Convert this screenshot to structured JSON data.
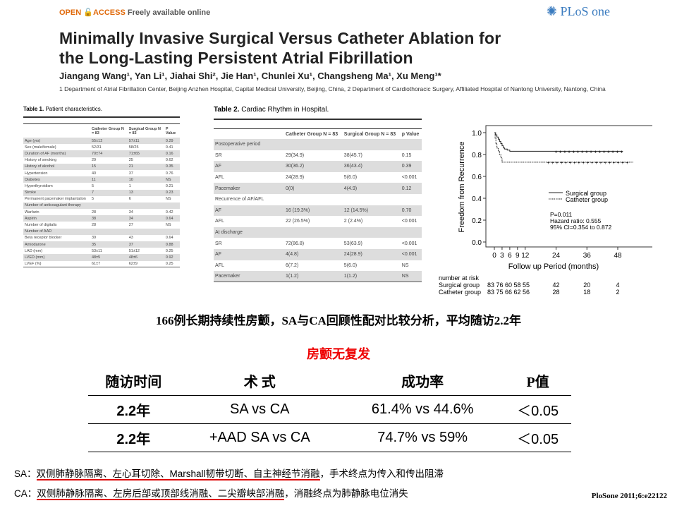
{
  "header": {
    "open_access": "OPEN",
    "access": "ACCESS",
    "freely": "Freely available online",
    "journal_logo": "PLoS one"
  },
  "paper": {
    "title_line1": "Minimally Invasive Surgical Versus Catheter Ablation for",
    "title_line2": "the Long-Lasting Persistent Atrial Fibrillation",
    "authors": "Jiangang Wang¹, Yan Li¹, Jiahai Shi², Jie Han¹, Chunlei Xu¹, Changsheng Ma¹, Xu Meng¹*",
    "affiliations": "1 Department of Atrial Fibrillation Center, Beijing Anzhen Hospital, Capital Medical University, Beijing, China, 2 Department of Cardiothoracic Surgery, Affiliated Hospital of Nantong University, Nantong, China"
  },
  "table1": {
    "caption_bold": "Table 1.",
    "caption": "Patient characteristics.",
    "headers": [
      "",
      "Catheter Group N = 83",
      "Surgical Group N = 83",
      "P Value"
    ],
    "rows": [
      [
        "Age (yrs)",
        "55±12",
        "57±11",
        "0.29"
      ],
      [
        "Sex (male/female)",
        "52/31",
        "58/25",
        "0.41"
      ],
      [
        "Duration of AF (months)",
        "70±74",
        "71±65",
        "0.16"
      ],
      [
        "History of smoking",
        "29",
        "25",
        "0.62"
      ],
      [
        "History of alcohol",
        "15",
        "21",
        "0.35"
      ],
      [
        "Hypertension",
        "40",
        "37",
        "0.76"
      ],
      [
        "Diabetes",
        "11",
        "10",
        "NS"
      ],
      [
        "Hyperthyroidism",
        "5",
        "1",
        "0.21"
      ],
      [
        "Stroke",
        "7",
        "13",
        "0.23"
      ],
      [
        "Permanent pacemaker implantation",
        "5",
        "6",
        "NS"
      ],
      [
        "Number of anticoagulant therapy",
        "",
        "",
        ""
      ],
      [
        "Warfarin",
        "28",
        "34",
        "0.42"
      ],
      [
        "Aspirin",
        "38",
        "34",
        "0.64"
      ],
      [
        "Number of digitalis",
        "28",
        "27",
        "NS"
      ],
      [
        "Number of AAD",
        "",
        "",
        ""
      ],
      [
        "Beta receptor blocker",
        "39",
        "43",
        "0.64"
      ],
      [
        "Amiodarone",
        "35",
        "37",
        "0.88"
      ],
      [
        "LAD (mm)",
        "53±11",
        "51±12",
        "0.25"
      ],
      [
        "LVED (mm)",
        "48±5",
        "48±6",
        "0.92"
      ],
      [
        "LVEF (%)",
        "61±7",
        "62±9",
        "0.25"
      ]
    ]
  },
  "table2": {
    "caption_bold": "Table 2.",
    "caption": "Cardiac Rhythm in Hospital.",
    "headers": [
      "",
      "Catheter Group N = 83",
      "Surgical Group N = 83",
      "p Value"
    ],
    "rows": [
      [
        "Postoperative period",
        "",
        "",
        ""
      ],
      [
        "SR",
        "29(34.9)",
        "38(45.7)",
        "0.15"
      ],
      [
        "AF",
        "30(36.2)",
        "36(43.4)",
        "0.39"
      ],
      [
        "AFL",
        "24(28.9)",
        "5(6.0)",
        "<0.001"
      ],
      [
        "Pacemaker",
        "0(0)",
        "4(4.9)",
        "0.12"
      ],
      [
        "Recurrence of AF/AFL",
        "",
        "",
        ""
      ],
      [
        "AF",
        "16 (19.3%)",
        "12 (14.5%)",
        "0.70"
      ],
      [
        "AFL",
        "22 (26.5%)",
        "2 (2.4%)",
        "<0.001"
      ],
      [
        "At discharge",
        "",
        "",
        ""
      ],
      [
        "SR",
        "72(86.8)",
        "53(63.9)",
        "<0.001"
      ],
      [
        "AF",
        "4(4.8)",
        "24(28.9)",
        "<0.001"
      ],
      [
        "AFL",
        "6(7.2)",
        "5(6.0)",
        "NS"
      ],
      [
        "Pacemaker",
        "1(1.2)",
        "1(1.2)",
        "NS"
      ]
    ]
  },
  "chart_data": {
    "type": "line",
    "title": "",
    "xlabel": "Follow up Period (months)",
    "ylabel": "Freedom from Recurrence",
    "xlim": [
      -2,
      55
    ],
    "ylim": [
      0,
      1.0
    ],
    "xticks": [
      "0",
      "3",
      "6",
      "9",
      "12",
      "24",
      "36",
      "48"
    ],
    "xtick_values": [
      0,
      3,
      6,
      9,
      12,
      24,
      36,
      48
    ],
    "yticks": [
      "0.0",
      "0.2",
      "0.4",
      "0.6",
      "0.8",
      "1.0"
    ],
    "ytick_values": [
      0,
      0.2,
      0.4,
      0.6,
      0.8,
      1.0
    ],
    "series": [
      {
        "name": "Surgical group",
        "style": "solid",
        "x": [
          0,
          0.5,
          1,
          1.5,
          2,
          2.5,
          3,
          3.5,
          4,
          5,
          6,
          50
        ],
        "y": [
          1.0,
          0.98,
          0.96,
          0.94,
          0.92,
          0.9,
          0.88,
          0.86,
          0.85,
          0.84,
          0.83,
          0.83
        ]
      },
      {
        "name": "Catheter group",
        "style": "dotted",
        "x": [
          0,
          0.3,
          0.6,
          1,
          1.5,
          2,
          2.5,
          3,
          54
        ],
        "y": [
          1.0,
          0.95,
          0.9,
          0.86,
          0.83,
          0.8,
          0.77,
          0.73,
          0.73
        ]
      }
    ],
    "annotations": [
      "P=0.011",
      "Hazard ratio: 0.555",
      "95% CI=0.354 to 0.872"
    ],
    "risk_table": {
      "label": "number at risk",
      "rows": [
        {
          "name": "Surgical group",
          "values": "83 76 60 58 55",
          "v24": "42",
          "v36": "20",
          "v48": "4"
        },
        {
          "name": "Catheter group",
          "values": "83 75 66 62 56",
          "v24": "28",
          "v36": "18",
          "v48": "2"
        }
      ]
    }
  },
  "slide": {
    "subtitle": "166例长期持续性房颤，SA与CA回顾性配对比较分析，平均随访2.2年",
    "highlight": "房颤无复发",
    "table_headers": [
      "随访时间",
      "术 式",
      "成功率",
      "P值"
    ],
    "table_rows": [
      [
        "2.2年",
        "SA vs CA",
        "61.4%  vs 44.6%",
        "＜0.05"
      ],
      [
        "2.2年",
        "+AAD  SA vs CA",
        "74.7%  vs 59%",
        "＜0.05"
      ]
    ],
    "sa_prefix": "SA：",
    "sa_underlined": "双侧肺静脉隔离、左心耳切除、Marshall韧带切断、自主神经节消融",
    "sa_rest": "，手术终点为传入和传出阻滞",
    "ca_prefix": "CA：",
    "ca_underlined": "双侧肺静脉隔离、左房后部或顶部线消融、二尖瓣峡部消融",
    "ca_rest": "，消融终点为肺静脉电位消失",
    "citation": "PloSone 2011;6:e22122"
  }
}
